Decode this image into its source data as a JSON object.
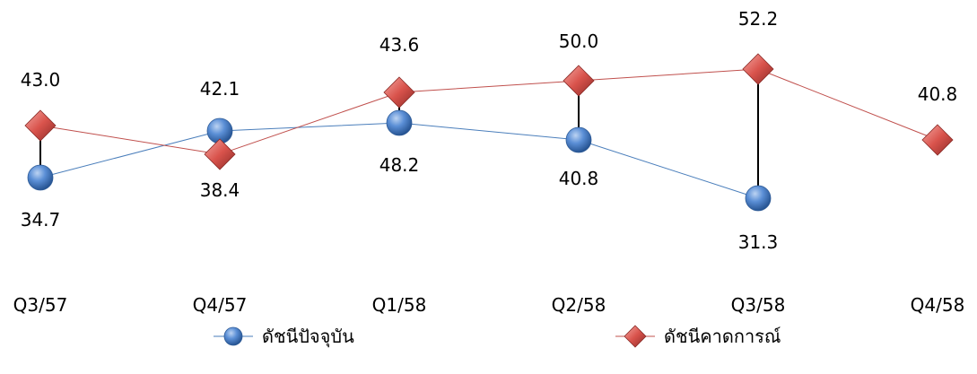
{
  "chart_data": {
    "type": "line",
    "categories": [
      "Q3/57",
      "Q4/57",
      "Q1/58",
      "Q2/58",
      "Q3/58",
      "Q4/58"
    ],
    "series": [
      {
        "name": "ดัชนีปัจจุบัน",
        "values": [
          34.7,
          42.1,
          48.2,
          40.8,
          31.3,
          null
        ],
        "color": "#4a7ebb",
        "marker": "circle"
      },
      {
        "name": "ดัชนีคาดการณ์",
        "values": [
          43.0,
          38.4,
          43.6,
          50.0,
          52.2,
          40.8
        ],
        "color": "#c0504d",
        "marker": "diamond"
      }
    ],
    "legend": "bottom",
    "grid": false,
    "high_low_lines": true
  }
}
